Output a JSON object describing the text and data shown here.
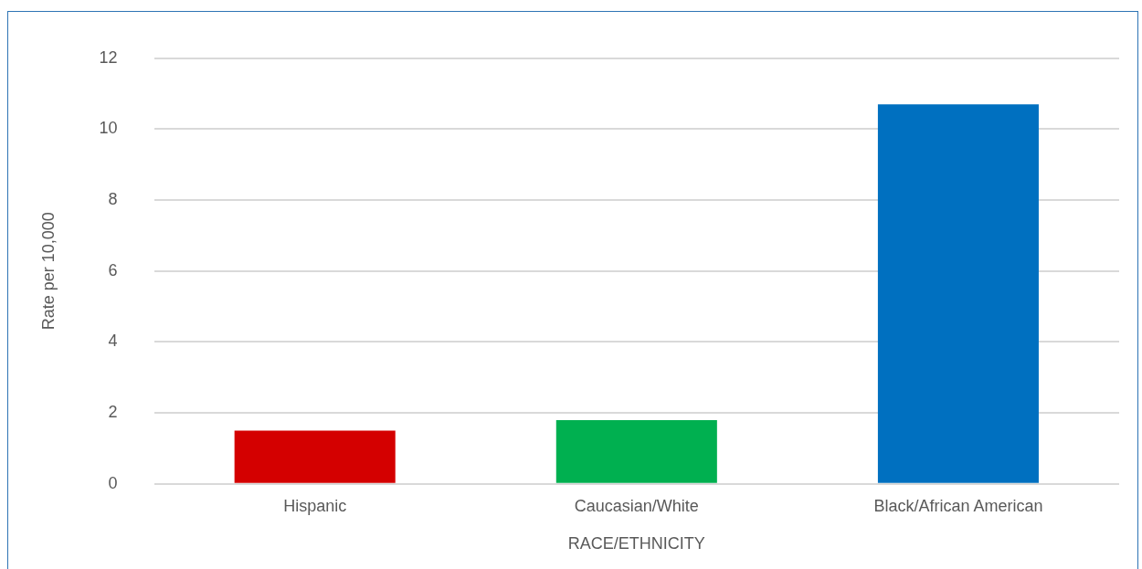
{
  "chart_data": {
    "type": "bar",
    "xlabel": "RACE/ETHNICITY",
    "ylabel": "Rate per 10,000",
    "categories": [
      "Hispanic",
      "Caucasian/White",
      "Black/African American"
    ],
    "values": [
      1.5,
      1.8,
      10.7
    ],
    "colors": [
      "#d40000",
      "#00b050",
      "#0070c0"
    ],
    "ylim": [
      0,
      12
    ],
    "yticks": [
      0,
      2,
      4,
      6,
      8,
      10,
      12
    ],
    "grid": "y",
    "legend": false
  }
}
